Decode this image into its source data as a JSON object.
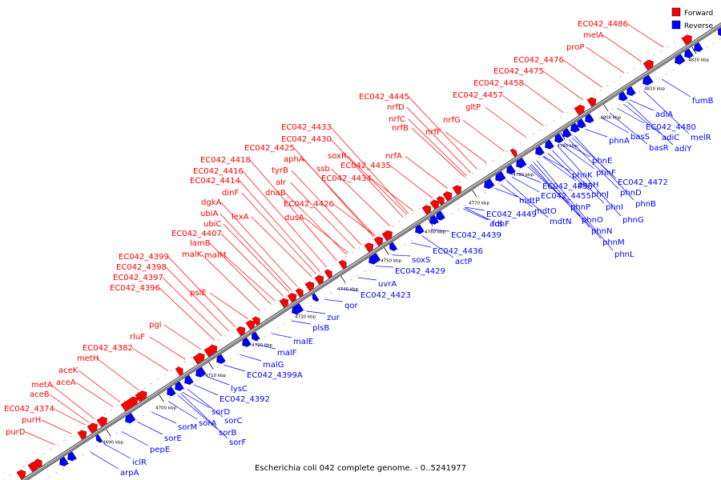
{
  "caption": "Escherichia coli 042 complete genome. - 0..5241977",
  "legend": {
    "forward": {
      "label": "Forward",
      "color": "#ff0000"
    },
    "reverse": {
      "label": "Reverse",
      "color": "#0000ff"
    }
  },
  "ticks": [
    "4690 kbp",
    "4700 kbp",
    "4710 kbp",
    "4720 kbp",
    "4730 kbp",
    "4740 kbp",
    "4750 kbp",
    "4760 kbp",
    "4770 kbp",
    "4780 kbp",
    "4790 kbp",
    "4800 kbp",
    "4810 kbp",
    "4820 kbp"
  ],
  "forward_labels": [
    "EC042_4374",
    "purH",
    "purD",
    "metA",
    "aceB",
    "aceA",
    "aceK",
    "metH",
    "EC042_4382",
    "rluF",
    "pgi",
    "psiE",
    "EC042_4396",
    "EC042_4397",
    "EC042_4398",
    "EC042_4399",
    "malK",
    "lamB",
    "malM",
    "EC042_4407",
    "ubiC",
    "ubiA",
    "dgkA",
    "dinF",
    "lexA",
    "EC042_4414",
    "EC042_4416",
    "EC042_4418",
    "dnaB",
    "alr",
    "tyrB",
    "aphA",
    "EC042_4425",
    "dusA",
    "EC042_4426",
    "EC042_4430",
    "EC042_4433",
    "ssb",
    "soxR",
    "EC042_4434",
    "EC042_4435",
    "nrfA",
    "nrfB",
    "nrfC",
    "nrfD",
    "EC042_4445",
    "nrfF",
    "nrfG",
    "gltP",
    "EC042_4457",
    "EC042_4458",
    "EC042_4475",
    "EC042_4476",
    "proP",
    "melA",
    "EC042_4486"
  ],
  "reverse_labels": [
    "arpA",
    "iclR",
    "pepE",
    "sorE",
    "sorM",
    "sorA",
    "sorB",
    "sorF",
    "sorC",
    "sorD",
    "EC042_4392",
    "lysC",
    "EC042_4399A",
    "malG",
    "malF",
    "malE",
    "plsB",
    "zur",
    "qor",
    "uvrA",
    "EC042_4423",
    "EC042_4429",
    "soxS",
    "actP",
    "EC042_4436",
    "EC042_4439",
    "acs",
    "fdhF",
    "EC042_4449",
    "mdtO",
    "mdtP",
    "mdtN",
    "EC042_4455",
    "EC042_4456",
    "phnP",
    "phnO",
    "phnN",
    "phnM",
    "phnL",
    "phnK",
    "phnJ",
    "phnI",
    "phnH",
    "phnG",
    "phnF",
    "phnE",
    "phnD",
    "phnB",
    "EC042_4472",
    "phnA",
    "basS",
    "basR",
    "EC042_4480",
    "adiC",
    "adiY",
    "adiA",
    "melR",
    "fumB"
  ]
}
